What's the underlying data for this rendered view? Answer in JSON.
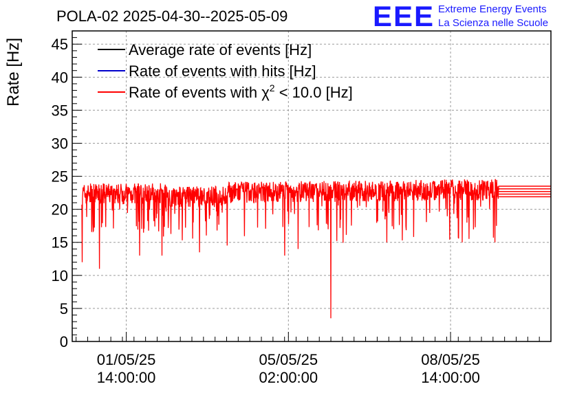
{
  "logo": {
    "mark": "EEE",
    "line1": "Extreme Energy Events",
    "line2": "La Scienza nelle Scuole"
  },
  "chart_data": {
    "type": "line",
    "title": "POLA-02 2025-04-30--2025-05-09",
    "xlabel": "",
    "ylabel": "Rate [Hz]",
    "ylim": [
      0,
      47
    ],
    "yticks": [
      0,
      5,
      10,
      15,
      20,
      25,
      30,
      35,
      40,
      45
    ],
    "x_range": [
      "2025-04-30 10:00",
      "2025-05-10 18:00"
    ],
    "xticks": [
      {
        "date": "01/05/25",
        "time": "14:00:00",
        "x": "2025-05-01 14:00"
      },
      {
        "date": "05/05/25",
        "time": "02:00:00",
        "x": "2025-05-05 02:00"
      },
      {
        "date": "08/05/25",
        "time": "14:00:00",
        "x": "2025-05-08 14:00"
      }
    ],
    "grid": true,
    "legend_position": "top-left",
    "data_start": "2025-04-30 15:00",
    "data_end": "2025-05-09 15:00",
    "series": [
      {
        "name": "Average rate of events [Hz]",
        "color": "#000000",
        "value": 22.6
      },
      {
        "name": "Rate of events with hits [Hz]",
        "color": "#0000cc",
        "value": 22.6
      },
      {
        "name": "Rate of events with",
        "name_suffix": " < 10.0 [Hz]",
        "color": "#ff0000",
        "typical_range": [
          21,
          24.5
        ],
        "notable_dips": [
          {
            "x": "2025-04-30 15:10",
            "y": 12
          },
          {
            "x": "2025-05-01 00:10",
            "y": 11
          },
          {
            "x": "2025-05-01 21:00",
            "y": 13
          },
          {
            "x": "2025-05-02 08:30",
            "y": 13
          },
          {
            "x": "2025-05-03 04:00",
            "y": 13.5
          },
          {
            "x": "2025-05-05 00:00",
            "y": 13
          },
          {
            "x": "2025-05-05 07:00",
            "y": 14
          },
          {
            "x": "2025-05-06 00:00",
            "y": 3.5
          },
          {
            "x": "2025-05-07 05:00",
            "y": 15
          },
          {
            "x": "2025-05-08 20:00",
            "y": 15
          },
          {
            "x": "2025-05-09 13:00",
            "y": 15
          }
        ]
      }
    ]
  }
}
